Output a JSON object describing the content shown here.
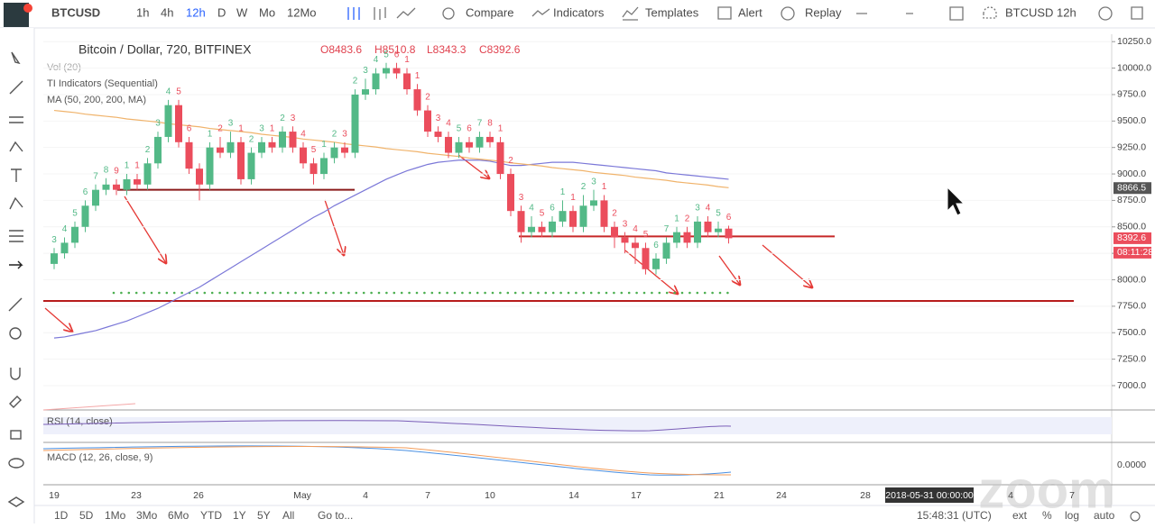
{
  "toolbar": {
    "symbol": "BTCUSD",
    "intervals": [
      "1h",
      "4h",
      "12h",
      "D",
      "W",
      "Mo",
      "12Mo"
    ],
    "buttons": [
      "Compare",
      "Indicators",
      "Templates",
      "Alert",
      "Replay"
    ],
    "layout": "BTCUSD 12h"
  },
  "legend": {
    "title": "Bitcoin / Dollar, 720, BITFINEX",
    "ohlc": [
      "O8483.6",
      "H8510.8",
      "L8343.3",
      "C8392.6"
    ],
    "studies": [
      "Vol (20)",
      "TI Indicators (Sequential)",
      "MA (50, 200, 200, MA)"
    ]
  },
  "price_chart": {
    "type": "candlestick",
    "ylim": [
      6770,
      10320
    ],
    "yticks": [
      {
        "value": 10250,
        "label": "10250.0"
      },
      {
        "value": 10000,
        "label": "10000.0"
      },
      {
        "value": 9750,
        "label": "9750.0"
      },
      {
        "value": 9500,
        "label": "9500.0"
      },
      {
        "value": 9250,
        "label": "9250.0"
      },
      {
        "value": 9000,
        "label": "9000.0"
      },
      {
        "value": 8750,
        "label": "8750.0"
      },
      {
        "value": 8500,
        "label": "8500.0"
      },
      {
        "value": 8250,
        "label": "8250.0"
      },
      {
        "value": 8000,
        "label": "8000.0"
      },
      {
        "value": 7750,
        "label": "7750.0"
      },
      {
        "value": 7500,
        "label": "7500.0"
      },
      {
        "value": 7250,
        "label": "7250.0"
      },
      {
        "value": 7000,
        "label": "7000.0"
      }
    ],
    "up_color": "#53b987",
    "down_color": "#eb4d5c",
    "candles": [
      [
        8150,
        8300,
        8100,
        8250
      ],
      [
        8250,
        8400,
        8200,
        8350
      ],
      [
        8350,
        8550,
        8300,
        8500
      ],
      [
        8500,
        8750,
        8450,
        8700
      ],
      [
        8700,
        8900,
        8650,
        8850
      ],
      [
        8850,
        8960,
        8800,
        8900
      ],
      [
        8900,
        8950,
        8800,
        8850
      ],
      [
        8850,
        9000,
        8800,
        8950
      ],
      [
        8950,
        9000,
        8850,
        8900
      ],
      [
        8900,
        9150,
        8850,
        9100
      ],
      [
        9100,
        9400,
        9050,
        9350
      ],
      [
        9350,
        9700,
        9300,
        9650
      ],
      [
        9650,
        9700,
        9250,
        9300
      ],
      [
        9300,
        9350,
        9000,
        9050
      ],
      [
        9050,
        9100,
        8750,
        8900
      ],
      [
        8900,
        9300,
        8850,
        9250
      ],
      [
        9250,
        9350,
        9150,
        9200
      ],
      [
        9200,
        9400,
        9150,
        9300
      ],
      [
        9300,
        9350,
        8900,
        8950
      ],
      [
        8950,
        9250,
        8900,
        9200
      ],
      [
        9200,
        9350,
        9150,
        9300
      ],
      [
        9300,
        9350,
        9200,
        9250
      ],
      [
        9250,
        9450,
        9200,
        9400
      ],
      [
        9400,
        9450,
        9200,
        9250
      ],
      [
        9250,
        9300,
        9050,
        9100
      ],
      [
        9100,
        9150,
        8900,
        9000
      ],
      [
        9000,
        9200,
        8950,
        9150
      ],
      [
        9150,
        9300,
        9100,
        9250
      ],
      [
        9250,
        9300,
        9150,
        9200
      ],
      [
        9200,
        9800,
        9150,
        9750
      ],
      [
        9750,
        9900,
        9700,
        9800
      ],
      [
        9800,
        10000,
        9750,
        9950
      ],
      [
        9950,
        10050,
        9900,
        10000
      ],
      [
        10000,
        10050,
        9900,
        9950
      ],
      [
        9950,
        10000,
        9750,
        9800
      ],
      [
        9800,
        9850,
        9550,
        9600
      ],
      [
        9600,
        9650,
        9350,
        9400
      ],
      [
        9400,
        9450,
        9300,
        9350
      ],
      [
        9350,
        9400,
        9150,
        9200
      ],
      [
        9200,
        9350,
        9150,
        9300
      ],
      [
        9300,
        9350,
        9200,
        9250
      ],
      [
        9250,
        9400,
        9200,
        9350
      ],
      [
        9350,
        9400,
        9250,
        9300
      ],
      [
        9300,
        9350,
        8950,
        9000
      ],
      [
        9000,
        9050,
        8600,
        8650
      ],
      [
        8650,
        8700,
        8350,
        8450
      ],
      [
        8450,
        8600,
        8400,
        8500
      ],
      [
        8500,
        8550,
        8400,
        8450
      ],
      [
        8450,
        8600,
        8400,
        8550
      ],
      [
        8550,
        8750,
        8500,
        8650
      ],
      [
        8650,
        8700,
        8450,
        8500
      ],
      [
        8500,
        8800,
        8450,
        8700
      ],
      [
        8700,
        8850,
        8650,
        8750
      ],
      [
        8750,
        8800,
        8450,
        8500
      ],
      [
        8500,
        8550,
        8300,
        8400
      ],
      [
        8400,
        8450,
        8250,
        8350
      ],
      [
        8350,
        8400,
        8150,
        8300
      ],
      [
        8300,
        8350,
        8050,
        8100
      ],
      [
        8100,
        8250,
        8050,
        8200
      ],
      [
        8200,
        8400,
        8150,
        8350
      ],
      [
        8350,
        8500,
        8300,
        8450
      ],
      [
        8450,
        8500,
        8300,
        8350
      ],
      [
        8350,
        8600,
        8300,
        8550
      ],
      [
        8550,
        8600,
        8400,
        8450
      ],
      [
        8450,
        8550,
        8400,
        8483.6
      ],
      [
        8483.6,
        8510.8,
        8343.3,
        8392.6
      ]
    ],
    "sequential": [
      3,
      4,
      5,
      6,
      7,
      8,
      9,
      1,
      1,
      2,
      3,
      4,
      5,
      6,
      null,
      1,
      2,
      3,
      1,
      2,
      3,
      1,
      2,
      3,
      4,
      5,
      1,
      2,
      3,
      2,
      3,
      4,
      5,
      6,
      1,
      1,
      2,
      3,
      4,
      5,
      6,
      7,
      8,
      1,
      2,
      3,
      4,
      5,
      6,
      1,
      1,
      2,
      3,
      1,
      2,
      3,
      4,
      5,
      6,
      7,
      1,
      2,
      3,
      4,
      5,
      6
    ],
    "series": [
      {
        "color": "#7b78d8",
        "values": [
          7450,
          7460,
          7480,
          7500,
          7520,
          7550,
          7580,
          7610,
          7650,
          7690,
          7730,
          7780,
          7830,
          7880,
          7930,
          7990,
          8050,
          8110,
          8170,
          8230,
          8290,
          8350,
          8410,
          8470,
          8530,
          8590,
          8640,
          8700,
          8750,
          8800,
          8850,
          8900,
          8950,
          8990,
          9030,
          9060,
          9090,
          9110,
          9120,
          9130,
          9130,
          9130,
          9120,
          9100,
          9080,
          9080,
          9090,
          9100,
          9110,
          9110,
          9110,
          9100,
          9090,
          9080,
          9070,
          9060,
          9050,
          9040,
          9030,
          9010,
          9000,
          8990,
          8980,
          8970,
          8960,
          8950
        ]
      },
      {
        "color": "#f0b36b",
        "values": [
          9600,
          9590,
          9580,
          9565,
          9555,
          9545,
          9535,
          9520,
          9510,
          9500,
          9490,
          9475,
          9465,
          9455,
          9445,
          9430,
          9420,
          9410,
          9400,
          9390,
          9375,
          9365,
          9355,
          9345,
          9330,
          9320,
          9310,
          9300,
          9285,
          9275,
          9265,
          9255,
          9240,
          9230,
          9220,
          9210,
          9195,
          9185,
          9175,
          9165,
          9150,
          9140,
          9130,
          9120,
          9105,
          9095,
          9085,
          9075,
          9060,
          9050,
          9040,
          9030,
          9015,
          9005,
          8995,
          8985,
          8970,
          8960,
          8950,
          8940,
          8925,
          8915,
          8905,
          8895,
          8880,
          8870
        ]
      }
    ],
    "levels": [
      {
        "value": 8410,
        "color": "#c62828"
      },
      {
        "value": 7800,
        "color": "#b71c1c"
      },
      {
        "value": 8850,
        "color": "#8b1a1a"
      }
    ],
    "price_tags": [
      {
        "value": 8866.5,
        "color": "#555555"
      },
      {
        "value": 8392.6,
        "color": "#eb4d5c"
      }
    ],
    "countdown": "08:11:28"
  },
  "panes": {
    "rsi": "RSI (14, close)",
    "macd": "MACD (12, 26, close, 9)",
    "macd_tick": "0.0000"
  },
  "time_axis": {
    "labels": [
      "19",
      "23",
      "26",
      "May",
      "4",
      "7",
      "10",
      "14",
      "17",
      "21",
      "24",
      "28",
      "4",
      "7"
    ],
    "crosshair_date": "2018-05-31 00:00:00"
  },
  "bottom_bar": {
    "ranges": [
      "1D",
      "5D",
      "1Mo",
      "3Mo",
      "6Mo",
      "YTD",
      "1Y",
      "5Y",
      "All"
    ],
    "goto": "Go to...",
    "clock": "15:48:31 (UTC)",
    "options": [
      "ext",
      "%",
      "log",
      "auto"
    ]
  },
  "watermark": "zoom"
}
